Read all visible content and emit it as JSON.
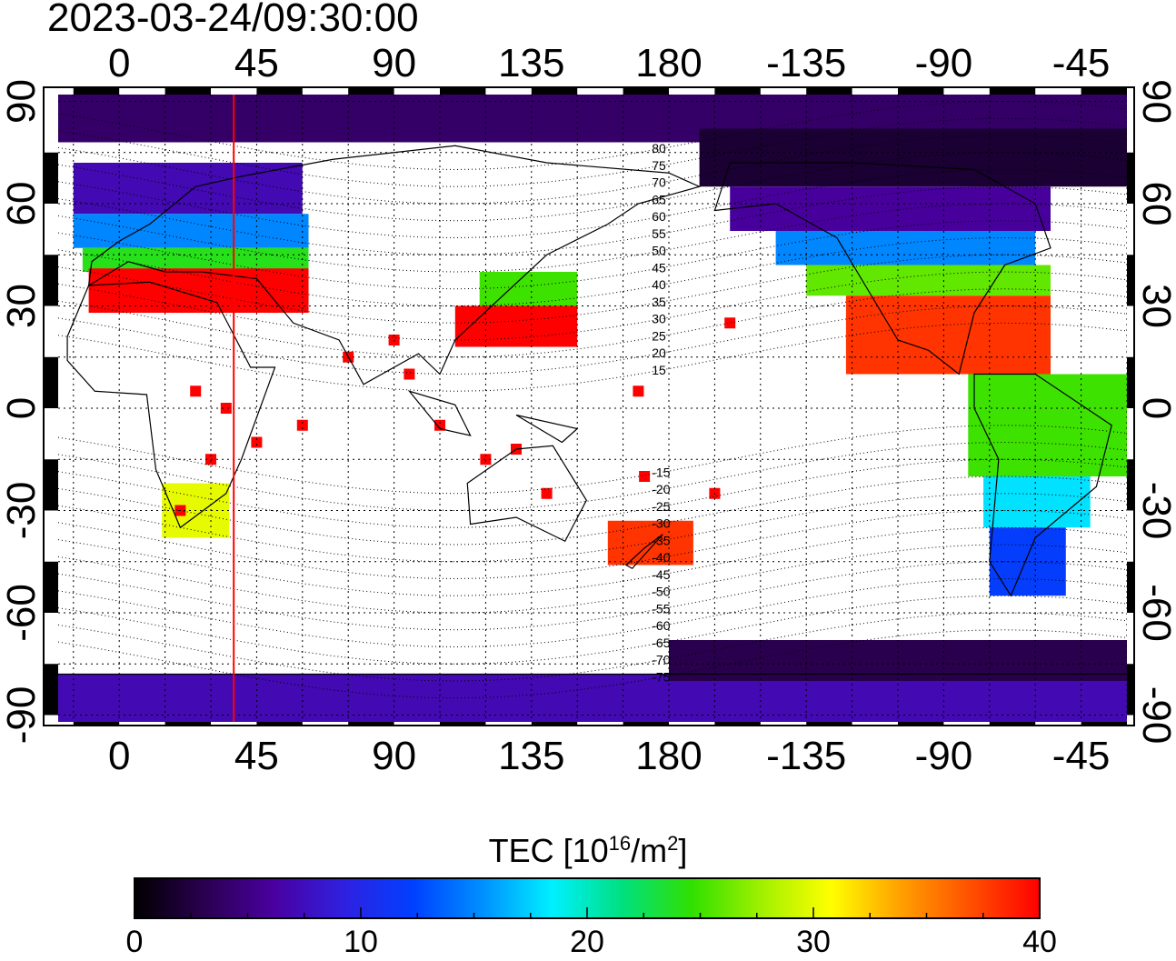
{
  "timestamp": "2023-03-24/09:30:00",
  "map": {
    "x_tick_labels": [
      "0",
      "45",
      "90",
      "135",
      "180",
      "-135",
      "-90",
      "-45"
    ],
    "x_tick_lons": [
      0,
      45,
      90,
      135,
      180,
      225,
      270,
      315
    ],
    "y_tick_labels": [
      "90",
      "60",
      "30",
      "0",
      "-30",
      "-60",
      "-90"
    ],
    "y_tick_lats": [
      90,
      60,
      30,
      0,
      -30,
      -60,
      -90
    ],
    "lon_range": [
      -20,
      330
    ],
    "lat_range": [
      -92,
      92
    ],
    "grid": "on",
    "marker_longitude": 37.5,
    "marker_color": "#ff0000",
    "magnetic_latitude_labels": [
      "80",
      "75",
      "70",
      "65",
      "60",
      "55",
      "50",
      "45",
      "40",
      "35",
      "30",
      "25",
      "20",
      "15",
      "-15",
      "-20",
      "-25",
      "-30",
      "-35",
      "-40",
      "-45",
      "-50",
      "-55",
      "-60",
      "-65",
      "-70",
      "-75"
    ]
  },
  "colorbar": {
    "title_main": "TEC  [10",
    "title_sup1": "16",
    "title_mid": "/m",
    "title_sup2": "2",
    "title_end": "]",
    "min": 0,
    "max": 40,
    "tick_labels": [
      "0",
      "10",
      "20",
      "30",
      "40"
    ],
    "colors": [
      "#000000",
      "#2a0050",
      "#4a00a0",
      "#3020e0",
      "#0040ff",
      "#0090ff",
      "#00f0ff",
      "#00e080",
      "#30e000",
      "#a0f000",
      "#ffff00",
      "#ffa000",
      "#ff5000",
      "#ff0000"
    ]
  }
}
